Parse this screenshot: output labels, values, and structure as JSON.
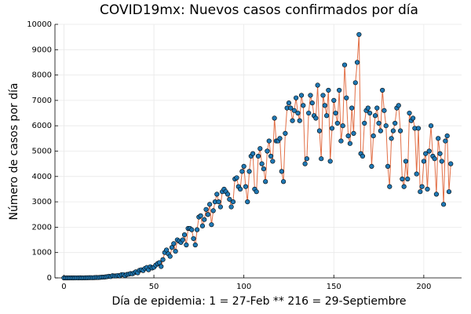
{
  "chart_data": {
    "type": "line",
    "title": "COVID19mx: Nuevos casos confirmados por día",
    "xlabel": "Día de epidemia: 1 = 27-Feb ** 216 = 29-Septiembre",
    "ylabel": "Número de casos por día",
    "x": [
      0,
      1,
      2,
      3,
      4,
      5,
      6,
      7,
      8,
      9,
      10,
      11,
      12,
      13,
      14,
      15,
      16,
      17,
      18,
      19,
      20,
      21,
      22,
      23,
      24,
      25,
      26,
      27,
      28,
      29,
      30,
      31,
      32,
      33,
      34,
      35,
      36,
      37,
      38,
      39,
      40,
      41,
      42,
      43,
      44,
      45,
      46,
      47,
      48,
      49,
      50,
      51,
      52,
      53,
      54,
      55,
      56,
      57,
      58,
      59,
      60,
      61,
      62,
      63,
      64,
      65,
      66,
      67,
      68,
      69,
      70,
      71,
      72,
      73,
      74,
      75,
      76,
      77,
      78,
      79,
      80,
      81,
      82,
      83,
      84,
      85,
      86,
      87,
      88,
      89,
      90,
      91,
      92,
      93,
      94,
      95,
      96,
      97,
      98,
      99,
      100,
      101,
      102,
      103,
      104,
      105,
      106,
      107,
      108,
      109,
      110,
      111,
      112,
      113,
      114,
      115,
      116,
      117,
      118,
      119,
      120,
      121,
      122,
      123,
      124,
      125,
      126,
      127,
      128,
      129,
      130,
      131,
      132,
      133,
      134,
      135,
      136,
      137,
      138,
      139,
      140,
      141,
      142,
      143,
      144,
      145,
      146,
      147,
      148,
      149,
      150,
      151,
      152,
      153,
      154,
      155,
      156,
      157,
      158,
      159,
      160,
      161,
      162,
      163,
      164,
      165,
      166,
      167,
      168,
      169,
      170,
      171,
      172,
      173,
      174,
      175,
      176,
      177,
      178,
      179,
      180,
      181,
      182,
      183,
      184,
      185,
      186,
      187,
      188,
      189,
      190,
      191,
      192,
      193,
      194,
      195,
      196,
      197,
      198,
      199,
      200,
      201,
      202,
      203,
      204,
      205,
      206,
      207,
      208,
      209,
      210,
      211,
      212,
      213,
      214,
      215
    ],
    "series": [
      {
        "color": "#e26f46",
        "marker_color": "#1f78b4",
        "values": [
          0,
          0,
          0,
          0,
          1,
          0,
          1,
          2,
          1,
          3,
          1,
          2,
          4,
          5,
          7,
          8,
          6,
          11,
          15,
          13,
          20,
          28,
          29,
          38,
          48,
          61,
          52,
          86,
          75,
          78,
          95,
          81,
          125,
          130,
          90,
          135,
          145,
          170,
          160,
          200,
          240,
          200,
          300,
          320,
          290,
          370,
          410,
          320,
          440,
          390,
          420,
          500,
          560,
          600,
          450,
          720,
          1000,
          1100,
          950,
          850,
          1200,
          1350,
          1050,
          1500,
          1450,
          1400,
          1500,
          1700,
          1300,
          1950,
          1950,
          1900,
          1550,
          1300,
          1900,
          2400,
          2450,
          2050,
          2300,
          2700,
          2500,
          2900,
          2100,
          2650,
          3000,
          3300,
          3000,
          2800,
          3400,
          3500,
          3400,
          3300,
          3100,
          2800,
          3000,
          3900,
          3950,
          3600,
          3500,
          4200,
          4400,
          3600,
          3000,
          4200,
          4800,
          4900,
          3500,
          3400,
          4800,
          5100,
          4500,
          4300,
          3800,
          5000,
          5400,
          4800,
          4600,
          6300,
          5400,
          5400,
          5500,
          4200,
          3800,
          5700,
          6700,
          6900,
          6700,
          6200,
          6600,
          7100,
          6500,
          6200,
          7200,
          6800,
          4500,
          4700,
          6500,
          7200,
          6900,
          6400,
          6300,
          7600,
          5800,
          4700,
          7200,
          6800,
          6400,
          7400,
          4600,
          5900,
          7000,
          6500,
          6100,
          7400,
          5400,
          6000,
          8400,
          7100,
          5600,
          5300,
          6700,
          5700,
          7700,
          8500,
          9600,
          4900,
          4800,
          6100,
          6600,
          6700,
          6500,
          4400,
          5600,
          6400,
          6700,
          6100,
          5800,
          7400,
          6600,
          6000,
          4400,
          3600,
          5500,
          5800,
          6100,
          6700,
          6800,
          5800,
          3900,
          3600,
          4600,
          3900,
          6500,
          6200,
          6300,
          5900,
          4100,
          5900,
          3400,
          3600,
          4600,
          4900,
          3500,
          5000,
          6000,
          4800,
          4700,
          3300,
          5500,
          4900,
          4600,
          2900,
          5400,
          5600,
          3400,
          4500
        ]
      }
    ],
    "xlim": [
      -5,
      221
    ],
    "xticks": [
      0,
      50,
      100,
      150,
      200
    ],
    "ylim": [
      0,
      10000
    ],
    "yticks": [
      0,
      1000,
      2000,
      3000,
      4000,
      5000,
      6000,
      7000,
      8000,
      9000,
      10000
    ],
    "grid": true
  }
}
